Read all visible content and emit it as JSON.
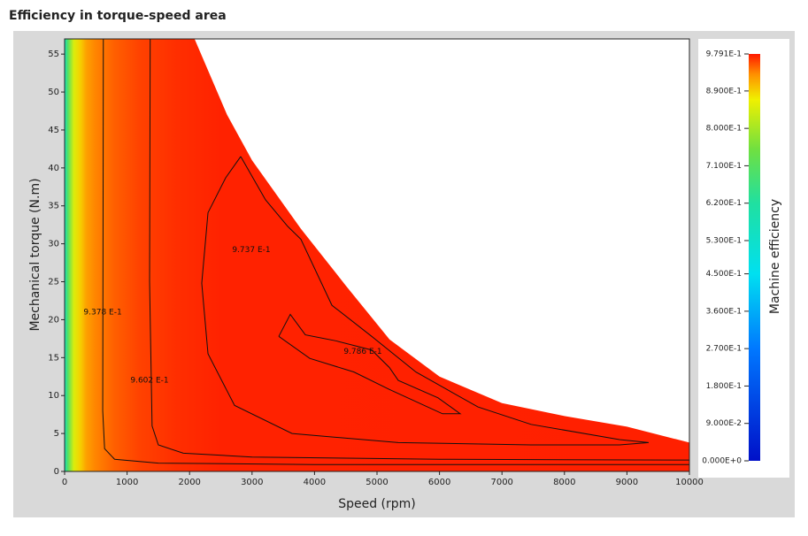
{
  "chart_data": {
    "type": "contour",
    "title": "Efficiency in torque-speed area",
    "x_label": "Speed (rpm)",
    "y_label": "Mechanical torque (N.m)",
    "colorbar_label": "Machine efficiency",
    "xlim": [
      0,
      10000
    ],
    "ylim": [
      0,
      57
    ],
    "xticks": [
      0,
      1000,
      2000,
      3000,
      4000,
      5000,
      6000,
      7000,
      8000,
      9000,
      10000
    ],
    "yticks": [
      0,
      5,
      10,
      15,
      20,
      25,
      30,
      35,
      40,
      45,
      50,
      55
    ],
    "colorbar_lim": [
      0,
      0.9791
    ],
    "colorbar_ticks": [
      {
        "value": 0.9791,
        "label": "9.791E-1"
      },
      {
        "value": 0.89,
        "label": "8.900E-1"
      },
      {
        "value": 0.8,
        "label": "8.000E-1"
      },
      {
        "value": 0.71,
        "label": "7.100E-1"
      },
      {
        "value": 0.62,
        "label": "6.200E-1"
      },
      {
        "value": 0.53,
        "label": "5.300E-1"
      },
      {
        "value": 0.45,
        "label": "4.500E-1"
      },
      {
        "value": 0.36,
        "label": "3.600E-1"
      },
      {
        "value": 0.27,
        "label": "2.700E-1"
      },
      {
        "value": 0.18,
        "label": "1.800E-1"
      },
      {
        "value": 0.09,
        "label": "9.000E-2"
      },
      {
        "value": 0,
        "label": "0.000E+0"
      }
    ],
    "colormap": {
      "values": [
        0,
        0.27,
        0.45,
        0.62,
        0.75,
        0.87,
        0.93,
        0.9791
      ],
      "colors": [
        "#0010c8",
        "#0078ff",
        "#00e0f0",
        "#20e0a0",
        "#70e040",
        "#f0f000",
        "#ff9000",
        "#ff1800"
      ]
    },
    "envelope": {
      "x": [
        0,
        2080,
        2600,
        3000,
        3780,
        4500,
        5200,
        6000,
        7000,
        8000,
        9000,
        10000
      ],
      "y": [
        57,
        57,
        47,
        41,
        32,
        24.5,
        17.4,
        12.5,
        9,
        7.3,
        5.9,
        3.8
      ]
    },
    "efficiency_profile": {
      "x": [
        0,
        50,
        150,
        250,
        350,
        500,
        800,
        1200,
        1800,
        2500,
        10000
      ],
      "values": [
        0.55,
        0.7,
        0.85,
        0.89,
        0.92,
        0.935,
        0.95,
        0.962,
        0.97,
        0.975,
        0.976
      ]
    },
    "contours": [
      {
        "value": 0.9378,
        "label": "9.378 E-1",
        "x": [
          620,
          615,
          610,
          640,
          800,
          1500,
          4000,
          10000
        ],
        "y": [
          57,
          30,
          8,
          3,
          1.6,
          1.1,
          0.9,
          0.9
        ]
      },
      {
        "value": 0.9602,
        "label": "9.602 E-1",
        "x": [
          1370,
          1360,
          1400,
          1500,
          1900,
          3000,
          6000,
          10000
        ],
        "y": [
          57,
          25,
          6,
          3.5,
          2.4,
          1.9,
          1.6,
          1.5
        ]
      },
      {
        "value": 0.9737,
        "label": "9.737 E-1",
        "x": [
          2819,
          3215,
          3570,
          3782,
          4278,
          4915,
          5623,
          6615,
          7465,
          8881,
          9348,
          8881,
          7465,
          5340,
          3640,
          2720,
          2295,
          2195,
          2295,
          2578,
          2819
        ],
        "y": [
          41.5,
          35.8,
          32.3,
          30.6,
          21.9,
          17.8,
          13.1,
          8.5,
          6.2,
          4.2,
          3.8,
          3.5,
          3.5,
          3.8,
          5.0,
          8.7,
          15.5,
          24.8,
          34.1,
          38.7,
          41.5
        ]
      },
      {
        "value": 0.9786,
        "label": "9.786 E-1",
        "x": [
          3428,
          3612,
          3853,
          4348,
          4915,
          5198,
          5340,
          5977,
          6331,
          6048,
          5198,
          4632,
          3924,
          3428
        ],
        "y": [
          17.8,
          20.7,
          18.0,
          17.2,
          16.0,
          13.7,
          12.0,
          9.7,
          7.6,
          7.6,
          10.8,
          13.1,
          14.9,
          17.8
        ]
      }
    ]
  }
}
